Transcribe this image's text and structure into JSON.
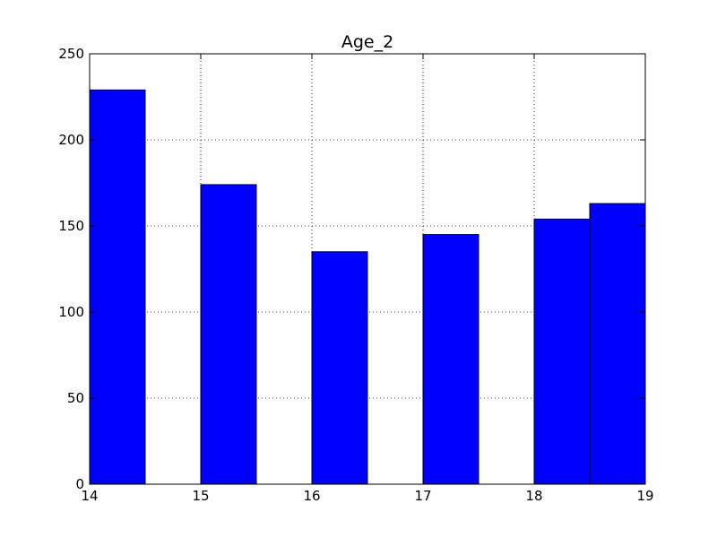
{
  "chart_data": {
    "type": "bar",
    "title": "Age_2",
    "xlabel": "",
    "ylabel": "",
    "xlim": [
      14,
      19
    ],
    "ylim": [
      0,
      250
    ],
    "grid": true,
    "bins": [
      {
        "x0": 14.0,
        "x1": 14.5,
        "value": 229
      },
      {
        "x0": 14.5,
        "x1": 15.0,
        "value": 0
      },
      {
        "x0": 15.0,
        "x1": 15.5,
        "value": 174
      },
      {
        "x0": 15.5,
        "x1": 16.0,
        "value": 0
      },
      {
        "x0": 16.0,
        "x1": 16.5,
        "value": 135
      },
      {
        "x0": 16.5,
        "x1": 17.0,
        "value": 0
      },
      {
        "x0": 17.0,
        "x1": 17.5,
        "value": 145
      },
      {
        "x0": 17.5,
        "x1": 18.0,
        "value": 0
      },
      {
        "x0": 18.0,
        "x1": 18.5,
        "value": 154
      },
      {
        "x0": 18.5,
        "x1": 19.0,
        "value": 163
      }
    ],
    "x_ticks": [
      "14",
      "15",
      "16",
      "17",
      "18",
      "19"
    ],
    "y_ticks": [
      "0",
      "50",
      "100",
      "150",
      "200",
      "250"
    ],
    "bar_color": "#0000ff",
    "edge_color": "#000000"
  }
}
